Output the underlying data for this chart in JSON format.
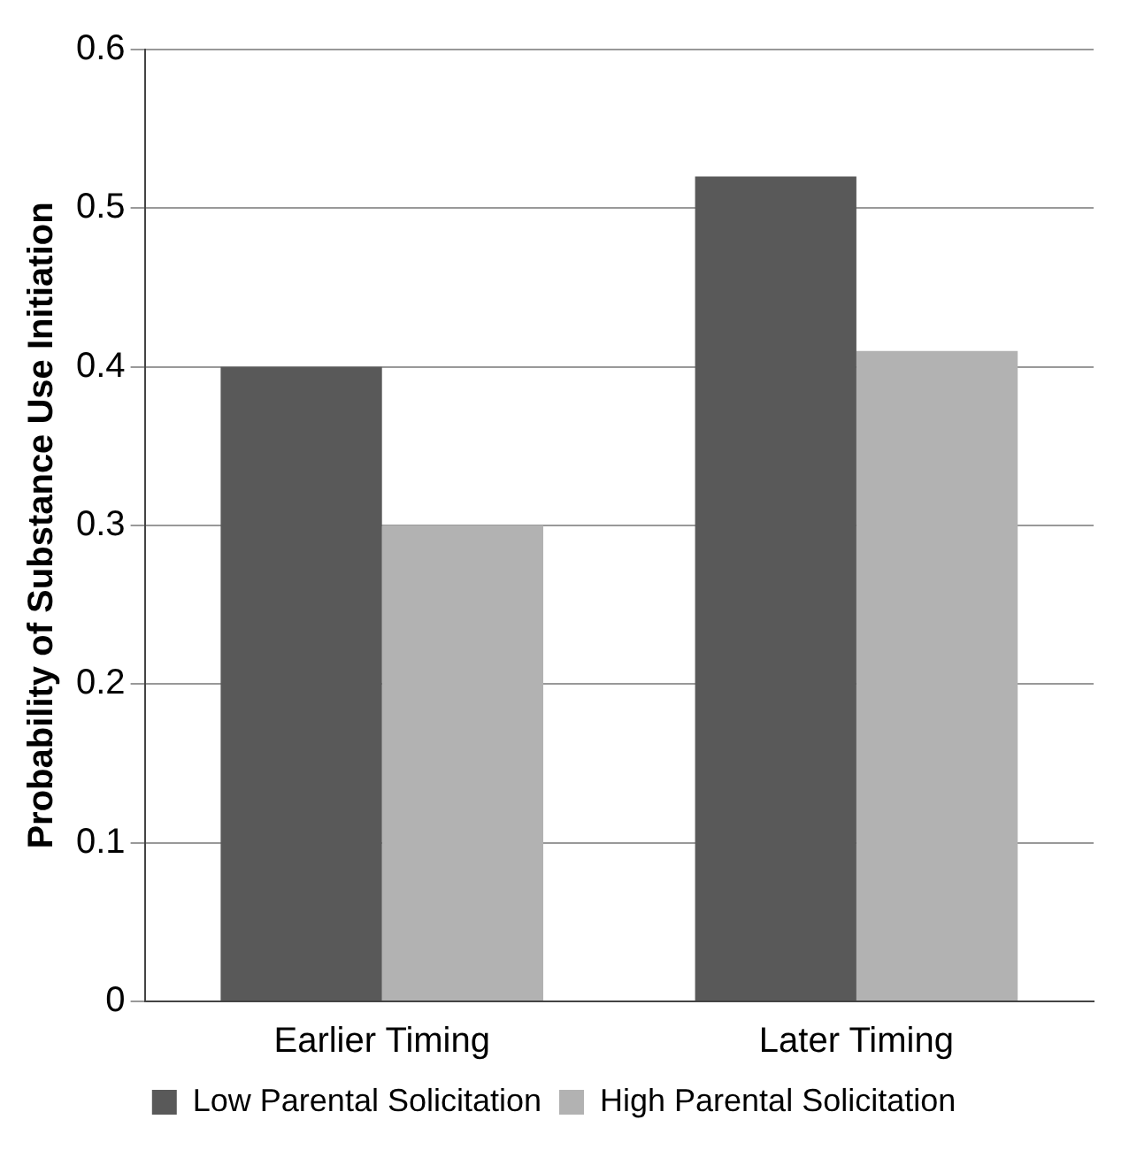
{
  "chart_data": {
    "type": "bar",
    "ylabel": "Probability of Substance Use Initiation",
    "categories": [
      "Earlier Timing",
      "Later Timing"
    ],
    "series": [
      {
        "name": "Low Parental Solicitation",
        "color": "#595959",
        "values": [
          0.4,
          0.52
        ]
      },
      {
        "name": "High Parental Solicitation",
        "color": "#b2b2b2",
        "values": [
          0.3,
          0.41
        ]
      }
    ],
    "ylim": [
      0,
      0.6
    ],
    "yticks": [
      0,
      0.1,
      0.2,
      0.3,
      0.4,
      0.5,
      0.6
    ],
    "grid": "y",
    "legend": "bottom"
  }
}
